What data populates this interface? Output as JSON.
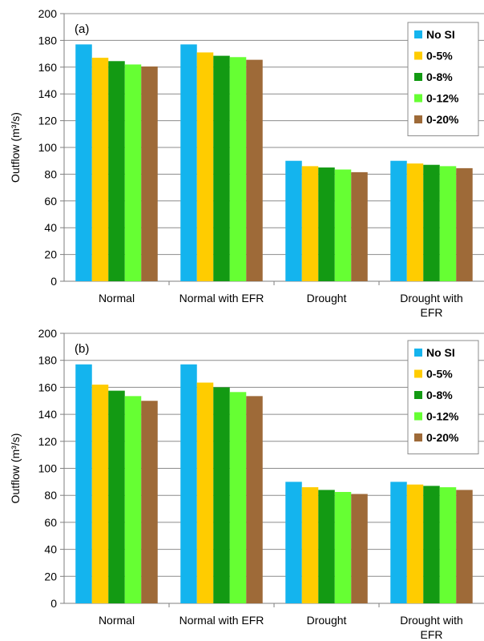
{
  "chart_data": [
    {
      "type": "bar",
      "panel_label": "(a)",
      "ylabel": "Outflow (m³/s)",
      "ylim": [
        0,
        200
      ],
      "yticks": [
        0,
        20,
        40,
        60,
        80,
        100,
        120,
        140,
        160,
        180,
        200
      ],
      "grid": true,
      "legend_position": "top-right",
      "categories": [
        [
          "Normal"
        ],
        [
          "Normal with EFR"
        ],
        [
          "Drought"
        ],
        [
          "Drought with",
          "EFR"
        ]
      ],
      "series": [
        {
          "name": "No SI",
          "color": "#14b4ee",
          "values": [
            177,
            177,
            90,
            90
          ]
        },
        {
          "name": "0-5%",
          "color": "#ffcc00",
          "values": [
            167,
            171,
            86,
            88
          ]
        },
        {
          "name": "0-8%",
          "color": "#139a13",
          "values": [
            164.5,
            168.5,
            85,
            87
          ]
        },
        {
          "name": "0-12%",
          "color": "#66ff33",
          "values": [
            162,
            167.5,
            83.5,
            86
          ]
        },
        {
          "name": "0-20%",
          "color": "#9e6a38",
          "values": [
            160.5,
            165.5,
            81.5,
            84.5
          ]
        }
      ]
    },
    {
      "type": "bar",
      "panel_label": "(b)",
      "ylabel": "Outflow (m³/s)",
      "ylim": [
        0,
        200
      ],
      "yticks": [
        0,
        20,
        40,
        60,
        80,
        100,
        120,
        140,
        160,
        180,
        200
      ],
      "grid": true,
      "legend_position": "top-right",
      "categories": [
        [
          "Normal"
        ],
        [
          "Normal with EFR"
        ],
        [
          "Drought"
        ],
        [
          "Drought with",
          "EFR"
        ]
      ],
      "series": [
        {
          "name": "No SI",
          "color": "#14b4ee",
          "values": [
            177,
            177,
            90,
            90
          ]
        },
        {
          "name": "0-5%",
          "color": "#ffcc00",
          "values": [
            162,
            163.5,
            86,
            88
          ]
        },
        {
          "name": "0-8%",
          "color": "#139a13",
          "values": [
            157.5,
            160,
            84,
            87
          ]
        },
        {
          "name": "0-12%",
          "color": "#66ff33",
          "values": [
            153.5,
            156.5,
            82.5,
            86
          ]
        },
        {
          "name": "0-20%",
          "color": "#9e6a38",
          "values": [
            150,
            153.5,
            81,
            84
          ]
        }
      ]
    }
  ]
}
